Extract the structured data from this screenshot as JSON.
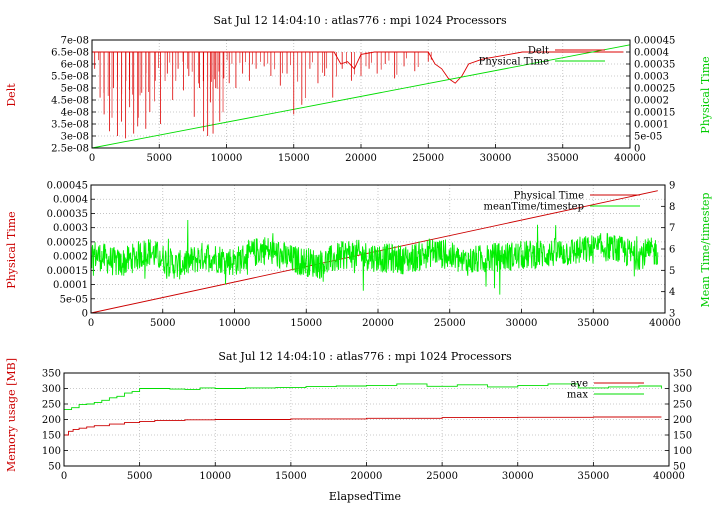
{
  "chart_data": [
    {
      "type": "line",
      "title": "Sat Jul 12 14:04:10 : atlas776 : mpi 1024 Processors",
      "xlim": [
        0,
        40000
      ],
      "xticks": [
        0,
        5000,
        10000,
        15000,
        20000,
        25000,
        30000,
        35000,
        40000
      ],
      "y_left": {
        "label": "Delt",
        "color": "#cc0000",
        "range": [
          2.5e-08,
          7e-08
        ],
        "ticks": [
          "2.5e-08",
          "3e-08",
          "3.5e-08",
          "4e-08",
          "4.5e-08",
          "5e-08",
          "5.5e-08",
          "6e-08",
          "6.5e-08",
          "7e-08"
        ]
      },
      "y_right": {
        "label": "Physical Time",
        "color": "#00cc00",
        "range": [
          0,
          0.00045
        ],
        "ticks": [
          "0",
          "5e-05",
          "0.0001",
          "0.00015",
          "0.0002",
          "0.00025",
          "0.0003",
          "0.00035",
          "0.0004",
          "0.00045"
        ]
      },
      "grid": true,
      "legend": "top-right",
      "series": [
        {
          "name": "Delt",
          "color": "#dd0000",
          "axis": "left",
          "x": [
            0,
            500,
            1000,
            2000,
            3000,
            4000,
            5000,
            6000,
            7000,
            8000,
            9000,
            10000,
            11000,
            12000,
            13000,
            14000,
            15000,
            16000,
            17000,
            18000,
            18500,
            19000,
            19500,
            20000,
            21000,
            22000,
            23000,
            24000,
            25000,
            25500,
            26000,
            26500,
            27000,
            27500,
            28000,
            29000,
            30000,
            31000,
            32000,
            33000,
            34000,
            35000,
            36000,
            37000,
            38000,
            39000,
            39500
          ],
          "y": [
            6.5e-08,
            6.5e-08,
            6.5e-08,
            6.5e-08,
            6.5e-08,
            6.5e-08,
            6.5e-08,
            6.5e-08,
            6.5e-08,
            6.5e-08,
            6.5e-08,
            6.5e-08,
            6.5e-08,
            6.5e-08,
            6.5e-08,
            6.5e-08,
            6.5e-08,
            6.5e-08,
            6.5e-08,
            6.5e-08,
            6e-08,
            6.1e-08,
            5.8e-08,
            6.4e-08,
            6.5e-08,
            6.5e-08,
            6.5e-08,
            6.5e-08,
            6.5e-08,
            6e-08,
            5.8e-08,
            5.4e-08,
            5.2e-08,
            5.5e-08,
            6e-08,
            6.2e-08,
            6.3e-08,
            6.4e-08,
            6.5e-08,
            6.5e-08,
            6.5e-08,
            6.5e-08,
            6.5e-08,
            6.5e-08,
            6.5e-08,
            6.5e-08,
            6.5e-08
          ]
        },
        {
          "name": "Physical Time",
          "color": "#00dd00",
          "axis": "right",
          "x": [
            0,
            40000
          ],
          "y": [
            0,
            0.00043
          ]
        }
      ],
      "spikes": {
        "series": "Delt",
        "x": [
          200,
          600,
          900,
          1300,
          1600,
          1900,
          2200,
          2500,
          2800,
          3100,
          3400,
          3700,
          4000,
          4300,
          4700,
          5100,
          5600,
          6000,
          6400,
          6800,
          7200,
          7600,
          8000,
          8300,
          8600,
          8800,
          9000,
          9200,
          9500,
          9800,
          10200,
          10700,
          11200,
          11700,
          12200,
          12800,
          13300,
          14000,
          14500,
          15000,
          15600,
          16200,
          16800,
          17300,
          17900,
          18600,
          19300,
          20000,
          20600,
          21200,
          21800,
          22500,
          23200,
          24000,
          25000
        ],
        "y": [
          5.8e-08,
          4.6e-08,
          3.9e-08,
          3.2e-08,
          5e-08,
          3e-08,
          3.6e-08,
          2.9e-08,
          4.2e-08,
          3.1e-08,
          3.4e-08,
          4.8e-08,
          3.3e-08,
          4e-08,
          5.3e-08,
          3.5e-08,
          5.6e-08,
          4.5e-08,
          5.8e-08,
          4.9e-08,
          5.5e-08,
          3.8e-08,
          5e-08,
          3.2e-08,
          3e-08,
          4.4e-08,
          3.1e-08,
          5e-08,
          3.6e-08,
          5.4e-08,
          5.2e-08,
          5e-08,
          5.6e-08,
          5.3e-08,
          5.8e-08,
          5.9e-08,
          5.5e-08,
          5.1e-08,
          5.6e-08,
          3.9e-08,
          4.3e-08,
          5.8e-08,
          5.2e-08,
          5.5e-08,
          4.6e-08,
          5.8e-08,
          5.3e-08,
          5.5e-08,
          5.8e-08,
          5.6e-08,
          6e-08,
          5.4e-08,
          5.9e-08,
          5.7e-08,
          6.1e-08
        ]
      }
    },
    {
      "type": "line",
      "title": "",
      "xlim": [
        0,
        40000
      ],
      "xticks": [
        0,
        5000,
        10000,
        15000,
        20000,
        25000,
        30000,
        35000,
        40000
      ],
      "y_left": {
        "label": "Physical Time",
        "color": "#cc0000",
        "range": [
          0,
          0.00045
        ],
        "ticks": [
          "0",
          "5e-05",
          "0.0001",
          "0.00015",
          "0.0002",
          "0.00025",
          "0.0003",
          "0.00035",
          "0.0004",
          "0.00045"
        ]
      },
      "y_right": {
        "label": "Mean Time/timestep",
        "color": "#00cc00",
        "range": [
          3,
          9
        ],
        "ticks": [
          "3",
          "4",
          "5",
          "6",
          "7",
          "8",
          "9"
        ]
      },
      "grid": true,
      "legend": "top-right",
      "series": [
        {
          "name": "Physical Time",
          "color": "#cc0000",
          "axis": "left",
          "x": [
            0,
            39500
          ],
          "y": [
            0,
            0.00043
          ]
        },
        {
          "name": "meanTime/timestep",
          "color": "#00ee00",
          "axis": "right",
          "x": [
            0,
            2000,
            4000,
            6000,
            8000,
            10000,
            12000,
            14000,
            16000,
            18000,
            20000,
            22000,
            24000,
            26000,
            28000,
            30000,
            32000,
            34000,
            36000,
            38000,
            39500
          ],
          "y": [
            5.8,
            5.3,
            5.9,
            5.2,
            5.7,
            5.4,
            6.0,
            5.5,
            5.3,
            5.8,
            5.6,
            5.5,
            5.9,
            5.4,
            5.6,
            5.7,
            5.8,
            5.9,
            6.1,
            5.7,
            5.9
          ],
          "noise_amplitude": 0.7
        }
      ]
    },
    {
      "type": "line",
      "title": "Sat Jul 12 14:04:10 : atlas776 : mpi 1024 Processors",
      "xlabel": "ElapsedTime",
      "xlim": [
        0,
        40000
      ],
      "xticks": [
        0,
        5000,
        10000,
        15000,
        20000,
        25000,
        30000,
        35000,
        40000
      ],
      "y_left": {
        "label": "Memory usage [MB]",
        "color": "#cc0000",
        "range": [
          50,
          350
        ],
        "ticks": [
          "50",
          "100",
          "150",
          "200",
          "250",
          "300",
          "350"
        ]
      },
      "y_right": {
        "label": "",
        "color": "#000000",
        "range": [
          50,
          350
        ],
        "ticks": [
          "50",
          "100",
          "150",
          "200",
          "250",
          "300",
          "350"
        ]
      },
      "grid": true,
      "legend": "top-right",
      "series": [
        {
          "name": "ave",
          "color": "#cc0000",
          "axis": "left",
          "x": [
            0,
            300,
            600,
            1000,
            1500,
            2000,
            3000,
            4000,
            5000,
            6000,
            8000,
            10000,
            15000,
            20000,
            25000,
            30000,
            35000,
            39500
          ],
          "y": [
            150,
            162,
            168,
            172,
            176,
            180,
            185,
            190,
            194,
            197,
            199,
            200,
            202,
            204,
            206,
            207,
            208,
            208
          ]
        },
        {
          "name": "max",
          "color": "#00dd00",
          "axis": "left",
          "x": [
            0,
            500,
            1000,
            1500,
            2000,
            2500,
            3000,
            3500,
            4000,
            4500,
            5000,
            6000,
            7000,
            8000,
            9000,
            10000,
            12000,
            14000,
            16000,
            18000,
            20000,
            22000,
            24000,
            26000,
            28000,
            30000,
            32000,
            34000,
            36000,
            38000,
            39500
          ],
          "y": [
            232,
            238,
            248,
            250,
            255,
            262,
            270,
            275,
            285,
            290,
            300,
            300,
            298,
            297,
            302,
            300,
            302,
            303,
            306,
            308,
            310,
            315,
            307,
            312,
            305,
            310,
            315,
            302,
            305,
            308,
            300
          ]
        }
      ]
    }
  ]
}
